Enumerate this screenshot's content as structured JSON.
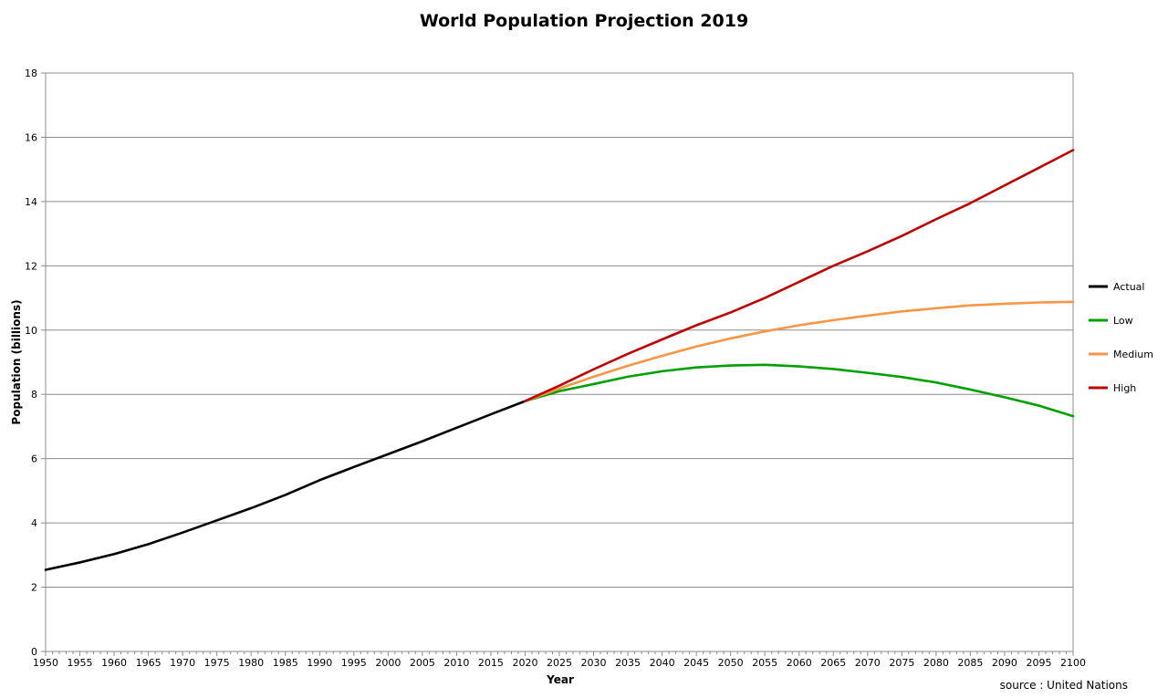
{
  "chart_data": {
    "type": "line",
    "title": "World Population Projection 2019",
    "xlabel": "Year",
    "ylabel": "Population (billions)",
    "source_note": "source : United Nations",
    "xlim": [
      1950,
      2100
    ],
    "ylim": [
      0,
      18
    ],
    "x_ticks": [
      1950,
      1955,
      1960,
      1965,
      1970,
      1975,
      1980,
      1985,
      1990,
      1995,
      2000,
      2005,
      2010,
      2015,
      2020,
      2025,
      2030,
      2035,
      2040,
      2045,
      2050,
      2055,
      2060,
      2065,
      2070,
      2075,
      2080,
      2085,
      2090,
      2095,
      2100
    ],
    "y_ticks": [
      0,
      2,
      4,
      6,
      8,
      10,
      12,
      14,
      16,
      18
    ],
    "grid": "horizontal",
    "legend_position": "right",
    "series": [
      {
        "name": "Actual",
        "color": "#000000",
        "x": [
          1950,
          1955,
          1960,
          1965,
          1970,
          1975,
          1980,
          1985,
          1990,
          1995,
          2000,
          2005,
          2010,
          2015,
          2020
        ],
        "y": [
          2.54,
          2.77,
          3.03,
          3.34,
          3.7,
          4.08,
          4.46,
          4.87,
          5.33,
          5.74,
          6.14,
          6.54,
          6.96,
          7.38,
          7.79
        ]
      },
      {
        "name": "Low",
        "color": "#00a000",
        "x": [
          2020,
          2025,
          2030,
          2035,
          2040,
          2045,
          2050,
          2055,
          2060,
          2065,
          2070,
          2075,
          2080,
          2085,
          2090,
          2095,
          2100
        ],
        "y": [
          7.79,
          8.1,
          8.32,
          8.55,
          8.72,
          8.84,
          8.9,
          8.92,
          8.87,
          8.79,
          8.67,
          8.54,
          8.37,
          8.15,
          7.91,
          7.65,
          7.32
        ]
      },
      {
        "name": "Medium",
        "color": "#f79646",
        "x": [
          2020,
          2025,
          2030,
          2035,
          2040,
          2045,
          2050,
          2055,
          2060,
          2065,
          2070,
          2075,
          2080,
          2085,
          2090,
          2095,
          2100
        ],
        "y": [
          7.79,
          8.18,
          8.55,
          8.89,
          9.2,
          9.49,
          9.74,
          9.96,
          10.15,
          10.31,
          10.45,
          10.58,
          10.68,
          10.77,
          10.82,
          10.86,
          10.88
        ]
      },
      {
        "name": "High",
        "color": "#c00000",
        "x": [
          2020,
          2025,
          2030,
          2035,
          2040,
          2045,
          2050,
          2055,
          2060,
          2065,
          2070,
          2075,
          2080,
          2085,
          2090,
          2095,
          2100
        ],
        "y": [
          7.79,
          8.27,
          8.78,
          9.26,
          9.71,
          10.15,
          10.55,
          11.0,
          11.5,
          12.0,
          12.45,
          12.93,
          13.45,
          13.95,
          14.5,
          15.05,
          15.6
        ]
      }
    ]
  }
}
